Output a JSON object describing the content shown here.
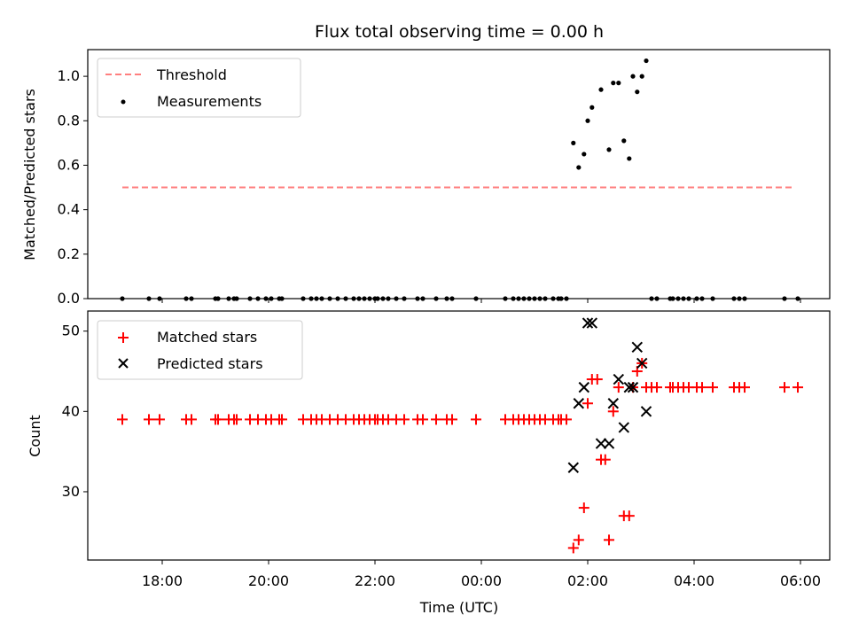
{
  "chart_data": [
    {
      "type": "scatter",
      "title": "Flux total observing time = 0.00 h",
      "ylabel": "Matched/Predicted stars",
      "xlabel": "",
      "ylim": [
        0,
        1.12
      ],
      "yticks": [
        "0.0",
        "0.2",
        "0.4",
        "0.6",
        "0.8",
        "1.0"
      ],
      "ytick_values": [
        0,
        0.2,
        0.4,
        0.6,
        0.8,
        1.0
      ],
      "x_unit": "hours since 00:00 UTC",
      "xlim": [
        -7.4,
        6.55
      ],
      "legend": {
        "placement": "top-left",
        "entries": [
          "Threshold",
          "Measurements"
        ]
      },
      "series": [
        {
          "name": "Threshold",
          "kind": "dashed-line",
          "color": "#ff7f7f",
          "x": [
            -6.75,
            5.9
          ],
          "y": [
            0.5,
            0.5
          ]
        },
        {
          "name": "Measurements",
          "kind": "dots",
          "color": "#000000",
          "x": [
            -6.75,
            -6.25,
            -6.05,
            -5.55,
            -5.45,
            -5.0,
            -4.95,
            -4.75,
            -4.65,
            -4.6,
            -4.35,
            -4.2,
            -4.05,
            -3.95,
            -3.8,
            -3.75,
            -3.35,
            -3.2,
            -3.1,
            -3.0,
            -2.85,
            -2.7,
            -2.55,
            -2.4,
            -2.3,
            -2.2,
            -2.1,
            -2.0,
            -1.95,
            -1.85,
            -1.75,
            -1.6,
            -1.45,
            -1.2,
            -1.1,
            -0.85,
            -0.65,
            -0.55,
            -0.1,
            0.45,
            0.6,
            0.7,
            0.8,
            0.9,
            1.0,
            1.1,
            1.2,
            1.35,
            1.45,
            1.5,
            1.6,
            1.73,
            1.83,
            1.93,
            2.0,
            2.08,
            2.25,
            2.4,
            2.48,
            2.58,
            2.68,
            2.78,
            2.85,
            2.93,
            3.02,
            3.1,
            3.2,
            3.3,
            3.55,
            3.6,
            3.7,
            3.8,
            3.9,
            4.05,
            4.15,
            4.35,
            4.75,
            4.85,
            4.95,
            5.7,
            5.95
          ],
          "y": [
            0,
            0,
            0,
            0,
            0,
            0,
            0,
            0,
            0,
            0,
            0,
            0,
            0,
            0,
            0,
            0,
            0,
            0,
            0,
            0,
            0,
            0,
            0,
            0,
            0,
            0,
            0,
            0,
            0,
            0,
            0,
            0,
            0,
            0,
            0,
            0,
            0,
            0,
            0,
            0,
            0,
            0,
            0,
            0,
            0,
            0,
            0,
            0,
            0,
            0,
            0,
            0.7,
            0.59,
            0.65,
            0.8,
            0.86,
            0.94,
            0.67,
            0.97,
            0.97,
            0.71,
            0.63,
            1.0,
            0.93,
            1.0,
            1.07,
            0,
            0,
            0,
            0,
            0,
            0,
            0,
            0,
            0,
            0,
            0,
            0,
            0,
            0,
            0
          ]
        }
      ]
    },
    {
      "type": "scatter",
      "title": "",
      "ylabel": "Count",
      "xlabel": "Time (UTC)",
      "ylim": [
        21.5,
        52.5
      ],
      "yticks": [
        "30",
        "40",
        "50"
      ],
      "ytick_values": [
        30,
        40,
        50
      ],
      "x_unit": "hours since 00:00 UTC",
      "xlim": [
        -7.4,
        6.55
      ],
      "xticks": [
        "18:00",
        "20:00",
        "22:00",
        "00:00",
        "02:00",
        "04:00",
        "06:00"
      ],
      "xtick_values": [
        -6,
        -4,
        -2,
        0,
        2,
        4,
        6
      ],
      "legend": {
        "placement": "top-left",
        "entries": [
          "Matched stars",
          "Predicted stars"
        ]
      },
      "series": [
        {
          "name": "Matched stars",
          "kind": "plus",
          "color": "#ff0000",
          "x": [
            -6.75,
            -6.25,
            -6.05,
            -5.55,
            -5.45,
            -5.0,
            -4.95,
            -4.75,
            -4.65,
            -4.6,
            -4.35,
            -4.2,
            -4.05,
            -3.95,
            -3.8,
            -3.75,
            -3.35,
            -3.2,
            -3.1,
            -3.0,
            -2.85,
            -2.7,
            -2.55,
            -2.4,
            -2.3,
            -2.2,
            -2.1,
            -2.0,
            -1.95,
            -1.85,
            -1.75,
            -1.6,
            -1.45,
            -1.2,
            -1.1,
            -0.85,
            -0.65,
            -0.55,
            -0.1,
            0.45,
            0.6,
            0.7,
            0.8,
            0.9,
            1.0,
            1.1,
            1.2,
            1.35,
            1.45,
            1.5,
            1.6,
            1.73,
            1.83,
            1.93,
            2.0,
            2.08,
            2.18,
            2.25,
            2.33,
            2.4,
            2.48,
            2.58,
            2.68,
            2.78,
            2.85,
            2.93,
            3.02,
            3.1,
            3.2,
            3.3,
            3.55,
            3.6,
            3.7,
            3.8,
            3.9,
            4.05,
            4.15,
            4.35,
            4.75,
            4.85,
            4.95,
            5.7,
            5.95
          ],
          "y": [
            39,
            39,
            39,
            39,
            39,
            39,
            39,
            39,
            39,
            39,
            39,
            39,
            39,
            39,
            39,
            39,
            39,
            39,
            39,
            39,
            39,
            39,
            39,
            39,
            39,
            39,
            39,
            39,
            39,
            39,
            39,
            39,
            39,
            39,
            39,
            39,
            39,
            39,
            39,
            39,
            39,
            39,
            39,
            39,
            39,
            39,
            39,
            39,
            39,
            39,
            39,
            23,
            24,
            28,
            41,
            44,
            44,
            34,
            34,
            24,
            40,
            43,
            27,
            27,
            43,
            45,
            46,
            43,
            43,
            43,
            43,
            43,
            43,
            43,
            43,
            43,
            43,
            43,
            43,
            43,
            43,
            43,
            43
          ]
        },
        {
          "name": "Predicted stars",
          "kind": "x",
          "color": "#000000",
          "x": [
            1.73,
            1.83,
            1.93,
            2.0,
            2.08,
            2.25,
            2.4,
            2.48,
            2.58,
            2.68,
            2.78,
            2.85,
            2.93,
            3.02,
            3.1
          ],
          "y": [
            33,
            41,
            43,
            51,
            51,
            36,
            36,
            41,
            44,
            38,
            43,
            43,
            48,
            46,
            40
          ]
        }
      ]
    }
  ]
}
